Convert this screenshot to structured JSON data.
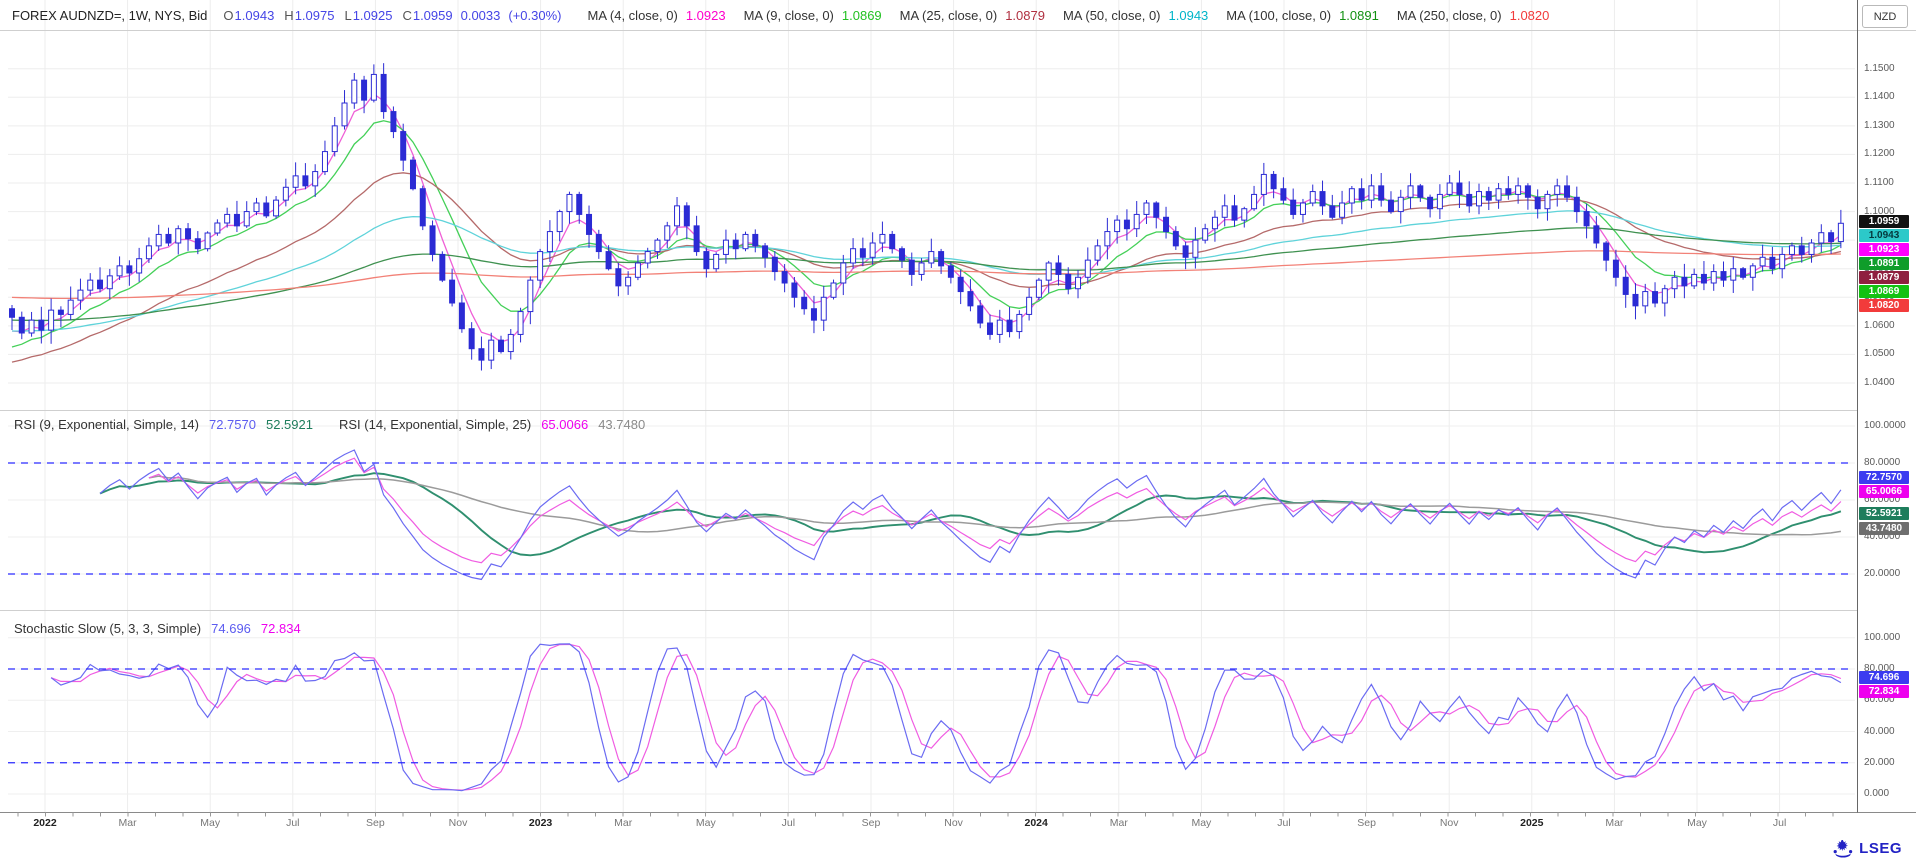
{
  "header": {
    "symbol_text": "FOREX AUDNZD=, 1W, NYS, Bid",
    "ohlc": [
      {
        "prefix": "O",
        "value": "1.0943"
      },
      {
        "prefix": "H",
        "value": "1.0975"
      },
      {
        "prefix": "L",
        "value": "1.0925"
      },
      {
        "prefix": "C",
        "value": "1.0959"
      },
      {
        "prefix": "",
        "value": "0.0033"
      },
      {
        "prefix": "",
        "value": "(+0.30%)"
      }
    ],
    "value_color": "#4545e6",
    "prefix_color": "#555555",
    "mas": [
      {
        "label": "MA (4, close, 0)",
        "value": "1.0923",
        "color": "#ff00cc"
      },
      {
        "label": "MA (9, close, 0)",
        "value": "1.0869",
        "color": "#22c122"
      },
      {
        "label": "MA (25, close, 0)",
        "value": "1.0879",
        "color": "#b03040"
      },
      {
        "label": "MA (50, close, 0)",
        "value": "1.0943",
        "color": "#00b5c9"
      },
      {
        "label": "MA (100, close, 0)",
        "value": "1.0891",
        "color": "#129112"
      },
      {
        "label": "MA (250, close, 0)",
        "value": "1.0820",
        "color": "#f23b3b"
      }
    ],
    "currency_button": "NZD"
  },
  "main_chart": {
    "y_ticks": [
      "1.1500",
      "1.1400",
      "1.1300",
      "1.1200",
      "1.1100",
      "1.1000",
      "1.0900",
      "1.0800",
      "1.0700",
      "1.0600",
      "1.0500",
      "1.0400"
    ],
    "price_labels": [
      {
        "text": "1.0959",
        "bg": "#111111",
        "fg": "#ffffff"
      },
      {
        "text": "1.0943",
        "bg": "#2cc9c9",
        "fg": "#04383c"
      },
      {
        "text": "1.0923",
        "bg": "#ff00ff",
        "fg": "#ffffff"
      },
      {
        "text": "1.0891",
        "bg": "#0f9d2a",
        "fg": "#ffffff"
      },
      {
        "text": "1.0879",
        "bg": "#8f1f3f",
        "fg": "#ffffff"
      },
      {
        "text": "1.0869",
        "bg": "#12c212",
        "fg": "#ffffff"
      },
      {
        "text": "1.0820",
        "bg": "#f23b3b",
        "fg": "#ffffff"
      }
    ]
  },
  "rsi_panel": {
    "items": [
      {
        "text": "RSI (9, Exponential, Simple, 14)",
        "color": "#333333",
        "gap": 10
      },
      {
        "text": "72.7570",
        "color": "#5c5cf0",
        "gap": 10
      },
      {
        "text": "52.5921",
        "color": "#1e7d5c",
        "gap": 26
      },
      {
        "text": "RSI (14, Exponential, Simple, 25)",
        "color": "#333333",
        "gap": 10
      },
      {
        "text": "65.0066",
        "color": "#ee00ee",
        "gap": 10
      },
      {
        "text": "43.7480",
        "color": "#8a8a8a",
        "gap": 0
      }
    ],
    "y_ticks": [
      "100.0000",
      "80.0000",
      "60.0000",
      "40.0000",
      "20.0000"
    ],
    "value_labels": [
      {
        "text": "72.7570",
        "bg": "#3b3bf0",
        "fg": "#ffffff"
      },
      {
        "text": "65.0066",
        "bg": "#ee00ee",
        "fg": "#ffffff"
      },
      {
        "text": "52.5921",
        "bg": "#1e7d5c",
        "fg": "#ffffff"
      },
      {
        "text": "43.7480",
        "bg": "#6e6e6e",
        "fg": "#ffffff"
      }
    ]
  },
  "stoch_panel": {
    "items": [
      {
        "text": "Stochastic Slow (5, 3, 3, Simple)",
        "color": "#333333",
        "gap": 10
      },
      {
        "text": "74.696",
        "color": "#5c5cf0",
        "gap": 10
      },
      {
        "text": "72.834",
        "color": "#ee00ee",
        "gap": 0
      }
    ],
    "y_ticks": [
      "100.000",
      "80.000",
      "60.000",
      "40.000",
      "20.000",
      "0.000"
    ],
    "value_labels": [
      {
        "text": "74.696",
        "bg": "#3b3bf0",
        "fg": "#ffffff"
      },
      {
        "text": "72.834",
        "bg": "#ee00ee",
        "fg": "#ffffff"
      }
    ]
  },
  "x_axis": [
    "2022",
    "Mar",
    "May",
    "Jul",
    "Sep",
    "Nov",
    "2023",
    "Mar",
    "May",
    "Jul",
    "Sep",
    "Nov",
    "2024",
    "Mar",
    "May",
    "Jul",
    "Sep",
    "Nov",
    "2025",
    "Mar",
    "May",
    "Jul"
  ],
  "footer": {
    "logo_text": "LSEG"
  },
  "chart_data": {
    "type": "candlestick",
    "title": "FOREX AUDNZD= weekly bid with MA overlays, RSI and Stochastic Slow sub-panels",
    "interval": "weekly",
    "x_range": [
      "2022-01",
      "2025-08"
    ],
    "y_axis": {
      "min": 1.04,
      "max": 1.158,
      "tick_step": 0.01
    },
    "last_bar": {
      "open": 1.0943,
      "high": 1.0975,
      "low": 1.0925,
      "close": 1.0959,
      "change": 0.0033,
      "change_pct": 0.3
    },
    "closes_approx": [
      1.063,
      1.0575,
      1.062,
      1.0585,
      1.0655,
      1.064,
      1.069,
      1.0725,
      1.076,
      1.073,
      1.0775,
      1.081,
      1.0785,
      1.0835,
      1.088,
      1.092,
      1.089,
      1.094,
      1.0905,
      1.087,
      1.0925,
      1.096,
      1.099,
      1.095,
      1.1,
      1.103,
      1.0985,
      1.104,
      1.1085,
      1.1125,
      1.109,
      1.114,
      1.121,
      1.13,
      1.138,
      1.146,
      1.139,
      1.148,
      1.135,
      1.128,
      1.118,
      1.108,
      1.095,
      1.085,
      1.076,
      1.068,
      1.059,
      1.052,
      1.048,
      1.055,
      1.051,
      1.057,
      1.065,
      1.076,
      1.086,
      1.093,
      1.1,
      1.106,
      1.099,
      1.092,
      1.086,
      1.08,
      1.074,
      1.077,
      1.082,
      1.086,
      1.09,
      1.095,
      1.102,
      1.095,
      1.086,
      1.08,
      1.085,
      1.09,
      1.087,
      1.092,
      1.088,
      1.084,
      1.079,
      1.075,
      1.07,
      1.066,
      1.062,
      1.07,
      1.075,
      1.082,
      1.087,
      1.084,
      1.089,
      1.092,
      1.087,
      1.083,
      1.078,
      1.082,
      1.086,
      1.081,
      1.077,
      1.072,
      1.067,
      1.061,
      1.057,
      1.062,
      1.058,
      1.064,
      1.07,
      1.076,
      1.082,
      1.078,
      1.073,
      1.077,
      1.083,
      1.088,
      1.093,
      1.097,
      1.094,
      1.099,
      1.103,
      1.098,
      1.093,
      1.088,
      1.084,
      1.09,
      1.094,
      1.098,
      1.102,
      1.097,
      1.101,
      1.106,
      1.113,
      1.108,
      1.104,
      1.099,
      1.103,
      1.107,
      1.102,
      1.098,
      1.103,
      1.108,
      1.104,
      1.109,
      1.104,
      1.1,
      1.105,
      1.109,
      1.105,
      1.101,
      1.106,
      1.11,
      1.106,
      1.102,
      1.107,
      1.104,
      1.108,
      1.106,
      1.109,
      1.105,
      1.101,
      1.106,
      1.109,
      1.105,
      1.1,
      1.095,
      1.089,
      1.083,
      1.077,
      1.071,
      1.067,
      1.072,
      1.068,
      1.073,
      1.077,
      1.074,
      1.078,
      1.075,
      1.079,
      1.076,
      1.08,
      1.077,
      1.081,
      1.084,
      1.08,
      1.085,
      1.088,
      1.085,
      1.089,
      1.0926,
      1.0895,
      1.0959
    ],
    "overlays": [
      {
        "name": "MA4",
        "window": 4,
        "color": "#ef5fd6",
        "last": 1.0923,
        "seed": 1.055
      },
      {
        "name": "MA9",
        "window": 9,
        "color": "#44d058",
        "last": 1.0869,
        "seed": 1.05
      },
      {
        "name": "MA25",
        "window": 25,
        "color": "#b56a6a",
        "last": 1.0879,
        "seed": 1.046
      },
      {
        "name": "MA50",
        "window": 50,
        "color": "#5fd3da",
        "last": 1.0943,
        "seed": 1.058
      },
      {
        "name": "MA100",
        "window": 100,
        "color": "#3f9150",
        "last": 1.0891,
        "seed": 1.062
      },
      {
        "name": "MA250",
        "window": 250,
        "color": "#f28177",
        "last": 1.082,
        "seed": 1.07
      }
    ],
    "indicators": [
      {
        "panel": "RSI",
        "range": [
          0,
          100
        ],
        "guides": [
          80,
          20
        ],
        "series": [
          {
            "name": "RSI(9)",
            "color": "#6b6bf2",
            "last": 72.757
          },
          {
            "name": "RSI(9) signal SMA14",
            "color": "#2f8f6f",
            "last": 52.5921
          },
          {
            "name": "RSI(14)",
            "color": "#f05ce2",
            "last": 65.0066
          },
          {
            "name": "RSI(14) signal SMA25",
            "color": "#9b9b9b",
            "last": 43.748
          }
        ]
      },
      {
        "panel": "Stochastic Slow (5,3,3, Simple)",
        "range": [
          0,
          100
        ],
        "guides": [
          80,
          20
        ],
        "series": [
          {
            "name": "%K",
            "color": "#6b6bf2",
            "last": 74.696
          },
          {
            "name": "%D",
            "color": "#f05ce2",
            "last": 72.834
          }
        ]
      }
    ],
    "candle_color": "#2b2bd4",
    "guide_color": "#2a2aff"
  }
}
